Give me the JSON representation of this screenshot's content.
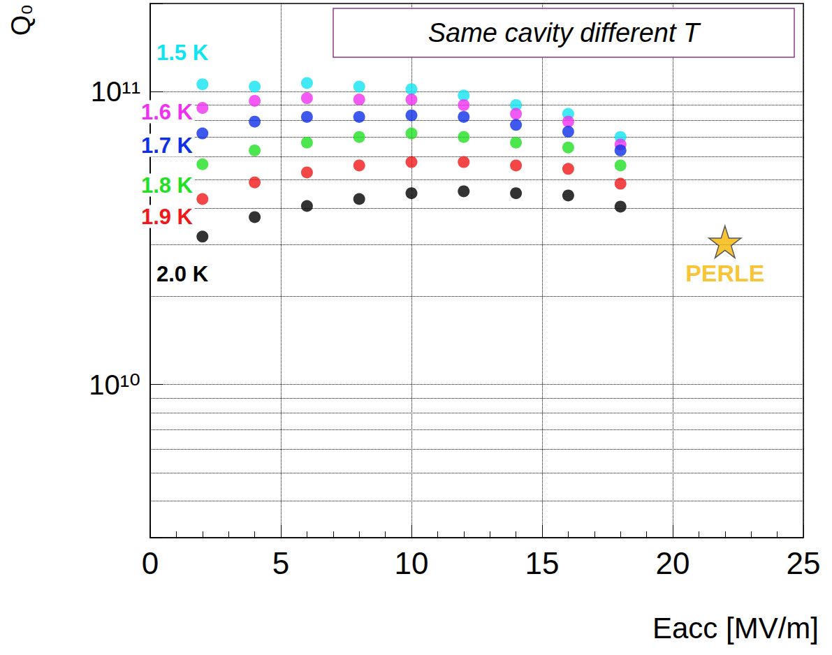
{
  "chart_data": {
    "type": "scatter",
    "title": "Same cavity different T",
    "x_label": "Eacc [MV/m]",
    "y_label": "Q₀",
    "xlim": [
      0,
      25
    ],
    "xticks": [
      0,
      5,
      10,
      15,
      20,
      25
    ],
    "ylim": [
      3000000000.0,
      200000000000.0
    ],
    "yticks": [
      {
        "value": 10000000000.0,
        "label": "10¹⁰"
      },
      {
        "value": 100000000000.0,
        "label": "10¹¹"
      }
    ],
    "log": "y",
    "grid": true,
    "series": [
      {
        "name": "1.5 K",
        "color": "#10e4f0",
        "marker": "circle",
        "x": [
          2,
          4,
          6,
          8,
          10,
          12,
          14,
          16,
          18
        ],
        "values": [
          106000000000.0,
          104000000000.0,
          107000000000.0,
          104000000000.0,
          102000000000.0,
          97000000000.0,
          90000000000.0,
          84000000000.0,
          70000000000.0
        ]
      },
      {
        "name": "1.6 K",
        "color": "#f030f0",
        "marker": "circle",
        "x": [
          2,
          4,
          6,
          8,
          10,
          12,
          14,
          16,
          18
        ],
        "values": [
          88000000000.0,
          93000000000.0,
          95000000000.0,
          94000000000.0,
          94000000000.0,
          90000000000.0,
          84000000000.0,
          79000000000.0,
          66000000000.0
        ]
      },
      {
        "name": "1.7 K",
        "color": "#1030e8",
        "marker": "circle",
        "x": [
          2,
          4,
          6,
          8,
          10,
          12,
          14,
          16,
          18
        ],
        "values": [
          72000000000.0,
          79000000000.0,
          82000000000.0,
          82000000000.0,
          83000000000.0,
          82000000000.0,
          77000000000.0,
          73000000000.0,
          63000000000.0
        ]
      },
      {
        "name": "1.8 K",
        "color": "#22e022",
        "marker": "circle",
        "x": [
          2,
          4,
          6,
          8,
          10,
          12,
          14,
          16,
          18
        ],
        "values": [
          56500000000.0,
          63000000000.0,
          67000000000.0,
          70000000000.0,
          72000000000.0,
          70000000000.0,
          67000000000.0,
          64500000000.0,
          56000000000.0
        ]
      },
      {
        "name": "1.9 K",
        "color": "#f01818",
        "marker": "circle",
        "x": [
          2,
          4,
          6,
          8,
          10,
          12,
          14,
          16,
          18
        ],
        "values": [
          43000000000.0,
          49000000000.0,
          53000000000.0,
          56000000000.0,
          57500000000.0,
          57500000000.0,
          56000000000.0,
          54500000000.0,
          48500000000.0
        ]
      },
      {
        "name": "2.0 K",
        "color": "#000000",
        "marker": "circle",
        "x": [
          2,
          4,
          6,
          8,
          10,
          12,
          14,
          16,
          18
        ],
        "values": [
          32000000000.0,
          37300000000.0,
          40700000000.0,
          43000000000.0,
          45000000000.0,
          45700000000.0,
          45000000000.0,
          44200000000.0,
          40500000000.0
        ]
      },
      {
        "name": "PERLE",
        "color": "#f7b500",
        "marker": "star",
        "x": [
          22
        ],
        "values": [
          30700000000.0
        ]
      }
    ]
  }
}
